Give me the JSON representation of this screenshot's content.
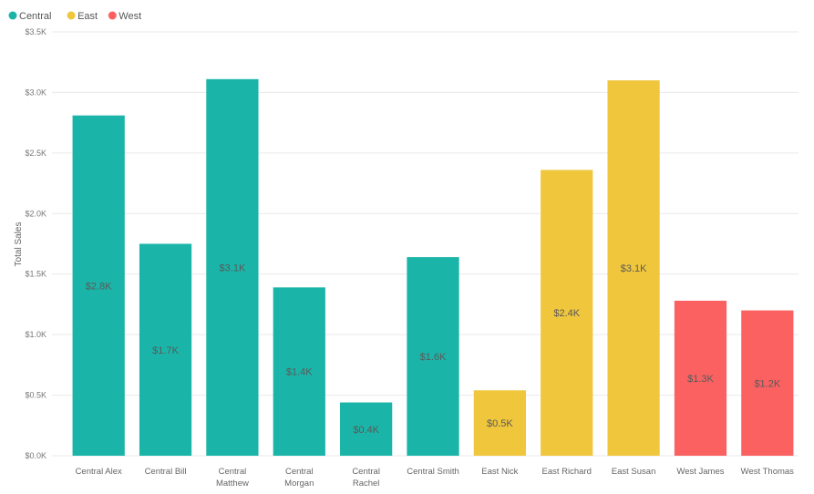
{
  "chart_data": {
    "type": "bar",
    "legend_position": "top-left",
    "grid": true,
    "ylabel": "Total Sales",
    "ylim": [
      0,
      3500
    ],
    "y_ticks": [
      {
        "value": 0,
        "label": "$0.0K"
      },
      {
        "value": 500,
        "label": "$0.5K"
      },
      {
        "value": 1000,
        "label": "$1.0K"
      },
      {
        "value": 1500,
        "label": "$1.5K"
      },
      {
        "value": 2000,
        "label": "$2.0K"
      },
      {
        "value": 2500,
        "label": "$2.5K"
      },
      {
        "value": 3000,
        "label": "$3.0K"
      },
      {
        "value": 3500,
        "label": "$3.5K"
      }
    ],
    "series": [
      {
        "name": "Central",
        "color": "#1ab5a8"
      },
      {
        "name": "East",
        "color": "#f0c63c"
      },
      {
        "name": "West",
        "color": "#fb6161"
      }
    ],
    "categories": [
      {
        "label": "Central Alex",
        "value": 2810,
        "series": "Central",
        "data_label": "$2.8K"
      },
      {
        "label": "Central Bill",
        "value": 1750,
        "series": "Central",
        "data_label": "$1.7K"
      },
      {
        "label": "Central Matthew",
        "value": 3110,
        "series": "Central",
        "data_label": "$3.1K"
      },
      {
        "label": "Central Morgan",
        "value": 1390,
        "series": "Central",
        "data_label": "$1.4K"
      },
      {
        "label": "Central Rachel",
        "value": 440,
        "series": "Central",
        "data_label": "$0.4K"
      },
      {
        "label": "Central Smith",
        "value": 1640,
        "series": "Central",
        "data_label": "$1.6K"
      },
      {
        "label": "East Nick",
        "value": 540,
        "series": "East",
        "data_label": "$0.5K"
      },
      {
        "label": "East Richard",
        "value": 2360,
        "series": "East",
        "data_label": "$2.4K"
      },
      {
        "label": "East Susan",
        "value": 3100,
        "series": "East",
        "data_label": "$3.1K"
      },
      {
        "label": "West James",
        "value": 1280,
        "series": "West",
        "data_label": "$1.3K"
      },
      {
        "label": "West Thomas",
        "value": 1200,
        "series": "West",
        "data_label": "$1.2K"
      }
    ]
  }
}
